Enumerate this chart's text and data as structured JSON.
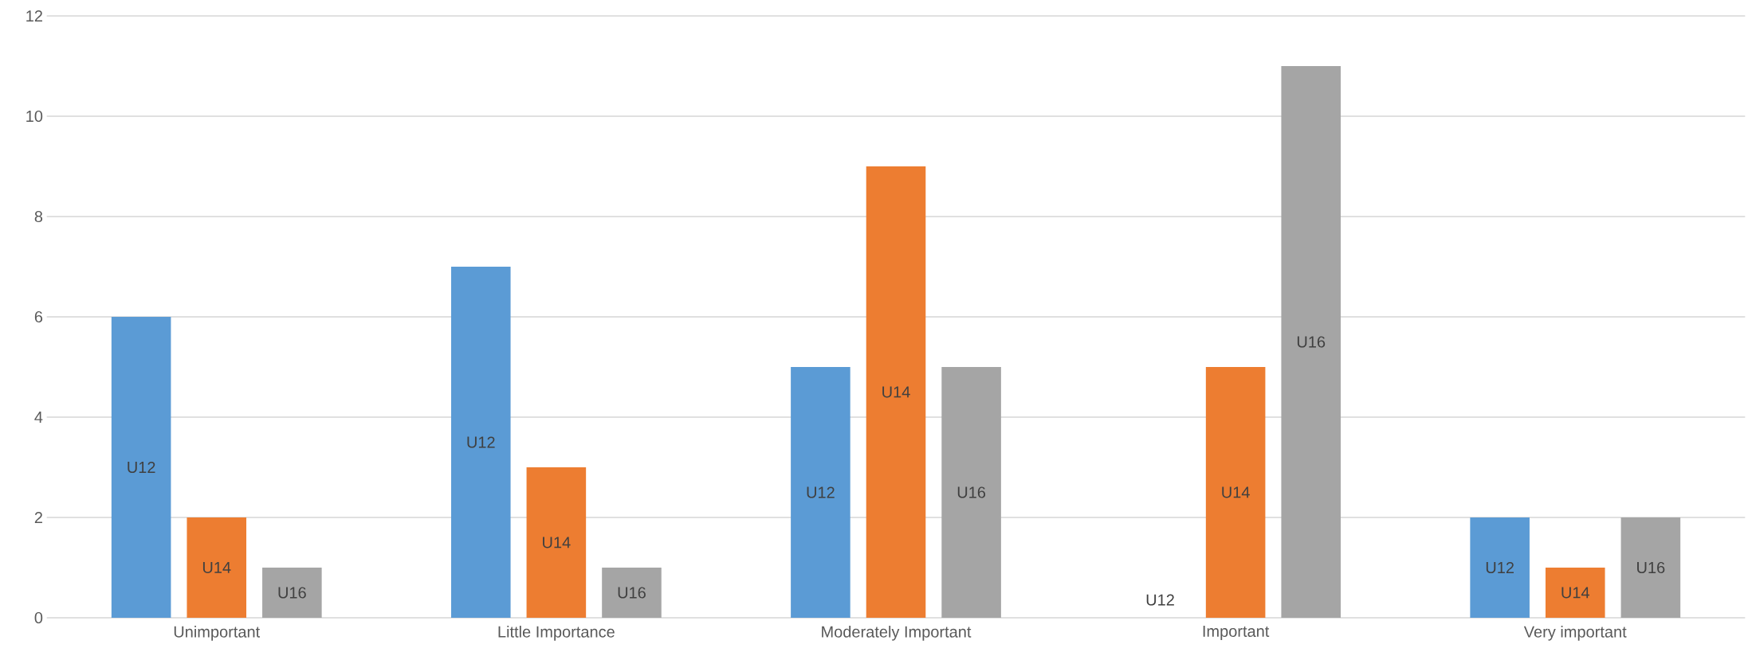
{
  "chart_data": {
    "type": "bar",
    "categories": [
      "Unimportant",
      "Little Importance",
      "Moderately Important",
      "Important",
      "Very important"
    ],
    "series": [
      {
        "name": "U12",
        "color": "#5b9bd5",
        "values": [
          6,
          7,
          5,
          0,
          2
        ]
      },
      {
        "name": "U14",
        "color": "#ed7d31",
        "values": [
          2,
          3,
          9,
          5,
          1
        ]
      },
      {
        "name": "U16",
        "color": "#a5a5a5",
        "values": [
          1,
          1,
          5,
          11,
          2
        ]
      }
    ],
    "ylim": [
      0,
      12
    ],
    "yticks": [
      0,
      2,
      4,
      6,
      8,
      10,
      12
    ],
    "grid": "y"
  }
}
